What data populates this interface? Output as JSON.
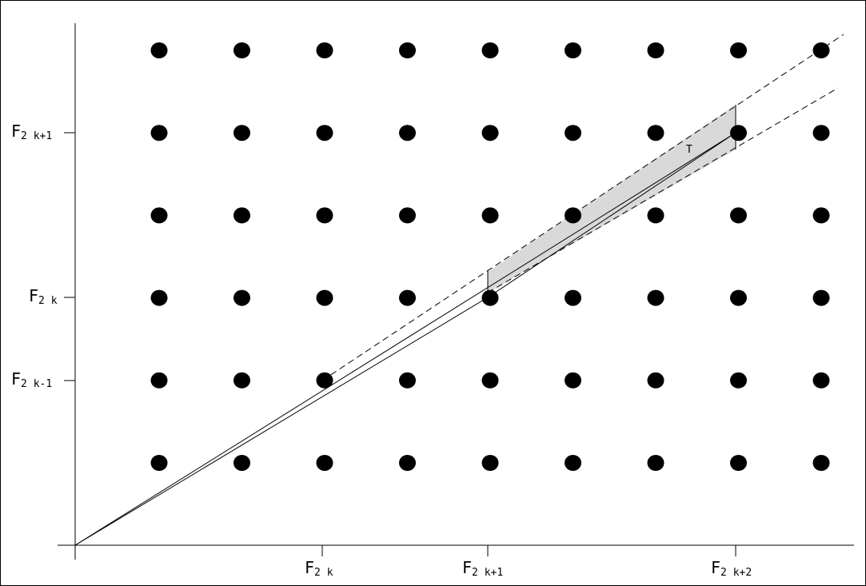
{
  "diagram": {
    "x_tick_labels": [
      {
        "main": "F",
        "sub": "2 k"
      },
      {
        "main": "F",
        "sub": "2 k+1"
      },
      {
        "main": "F",
        "sub": "2 k+2"
      }
    ],
    "y_tick_labels": [
      {
        "main": "F",
        "sub": "2 k+1"
      },
      {
        "main": "F",
        "sub": "2 k"
      },
      {
        "main": "F",
        "sub": "2 k-1"
      }
    ],
    "region_label": "T",
    "lattice": {
      "columns": 9,
      "rows": 6
    },
    "colors": {
      "points": "#000000",
      "region_fill": "#d9d9d9",
      "lines": "#000000"
    }
  }
}
